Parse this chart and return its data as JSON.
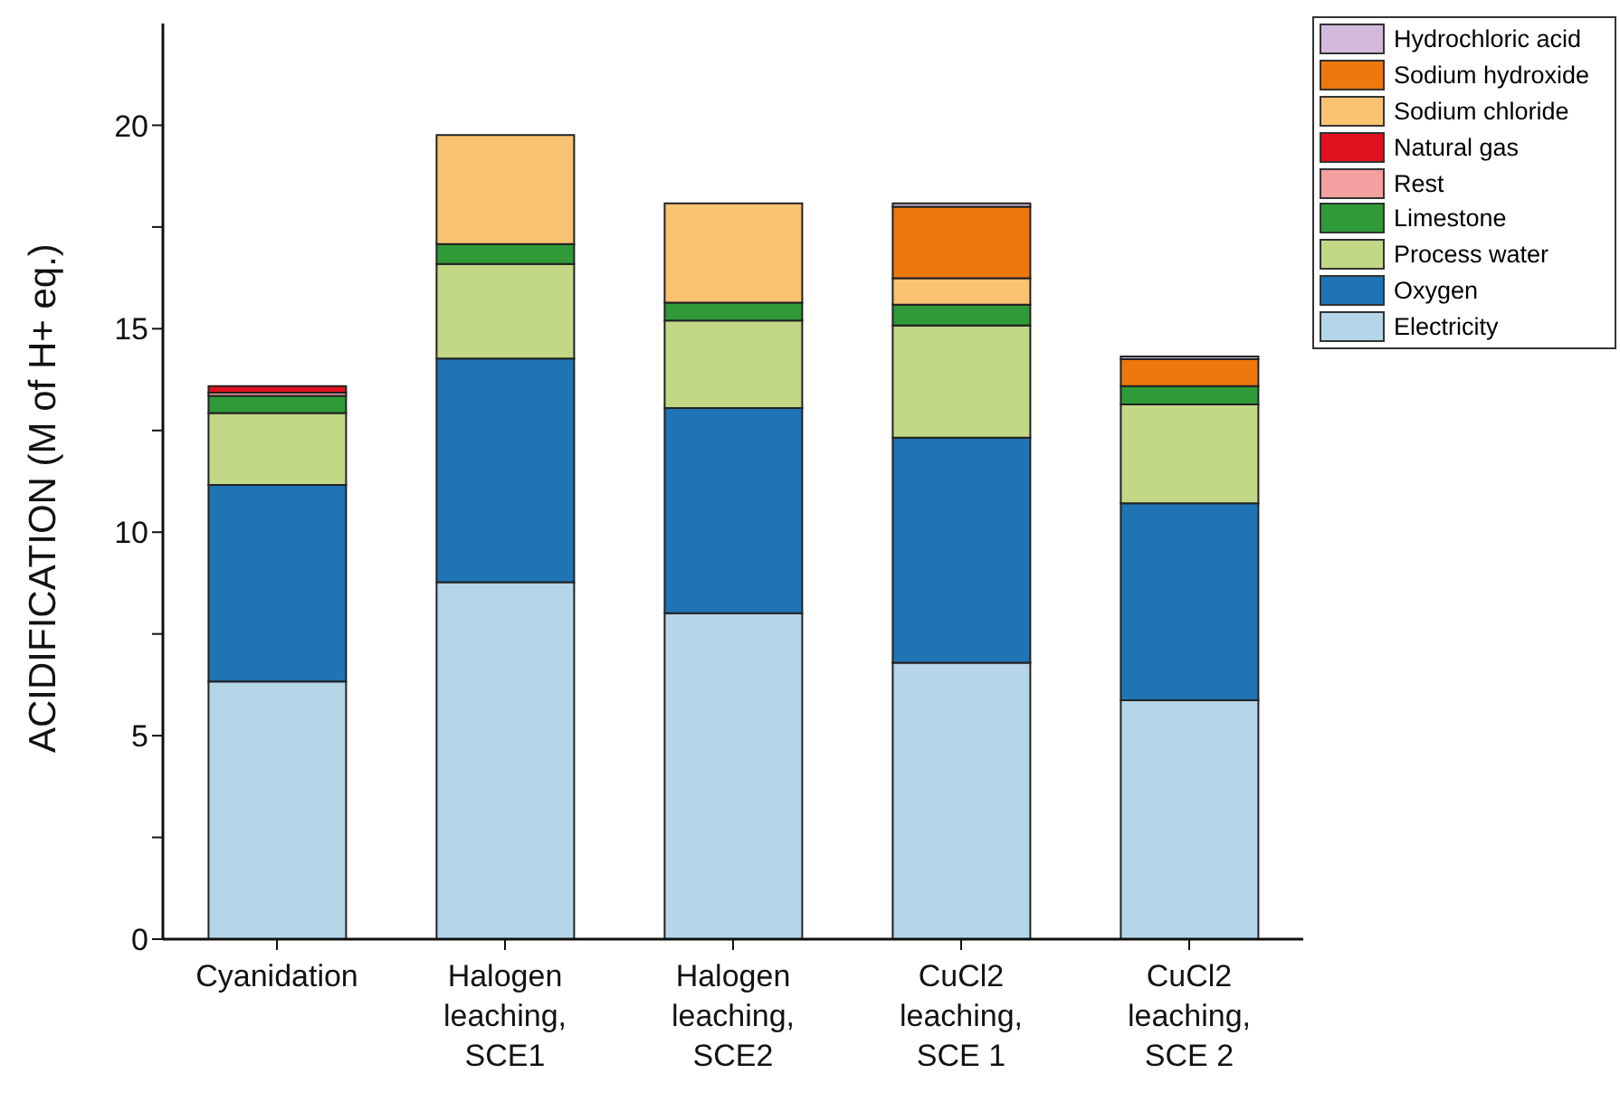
{
  "chart_data": {
    "type": "bar",
    "stacked": true,
    "ylabel": "ACIDIFICATION (M of H+ eq.)",
    "categories": [
      "Cyanidation",
      "Halogen leaching, SCE1",
      "Halogen leaching, SCE2",
      "CuCl2 leaching, SCE 1",
      "CuCl2 leaching, SCE 2"
    ],
    "series": [
      {
        "name": "Electricity",
        "color": "#b5d5e8",
        "values": [
          6.33,
          8.77,
          8.01,
          6.79,
          5.87
        ]
      },
      {
        "name": "Oxygen",
        "color": "#1f74b4",
        "values": [
          4.83,
          5.5,
          5.04,
          5.53,
          4.84
        ]
      },
      {
        "name": "Process water",
        "color": "#c2d887",
        "values": [
          1.77,
          2.32,
          2.15,
          2.76,
          2.43
        ]
      },
      {
        "name": "Limestone",
        "color": "#2f9a37",
        "values": [
          0.42,
          0.49,
          0.44,
          0.51,
          0.45
        ]
      },
      {
        "name": "Rest",
        "color": "#f4a0a0",
        "values": [
          0.08,
          0,
          0,
          0,
          0
        ]
      },
      {
        "name": "Natural gas",
        "color": "#e0101f",
        "values": [
          0.16,
          0,
          0,
          0,
          0
        ]
      },
      {
        "name": "Sodium chloride",
        "color": "#fac372",
        "values": [
          0,
          2.68,
          2.44,
          0.65,
          0
        ]
      },
      {
        "name": "Sodium hydroxide",
        "color": "#ef780c",
        "values": [
          0,
          0,
          0,
          1.76,
          0.66
        ]
      },
      {
        "name": "Hydrochloric acid",
        "color": "#d2b8db",
        "values": [
          0,
          0,
          0,
          0.08,
          0.07
        ]
      }
    ],
    "ylim": [
      0,
      22.5
    ],
    "yticks": [
      0,
      {
        "value": 2.5,
        "label": null
      },
      5,
      {
        "value": 7.5,
        "label": null
      },
      10,
      {
        "value": 12.5,
        "label": null
      },
      15,
      {
        "value": 17.5,
        "label": null
      },
      20
    ],
    "grid": false,
    "legend": "top right"
  }
}
